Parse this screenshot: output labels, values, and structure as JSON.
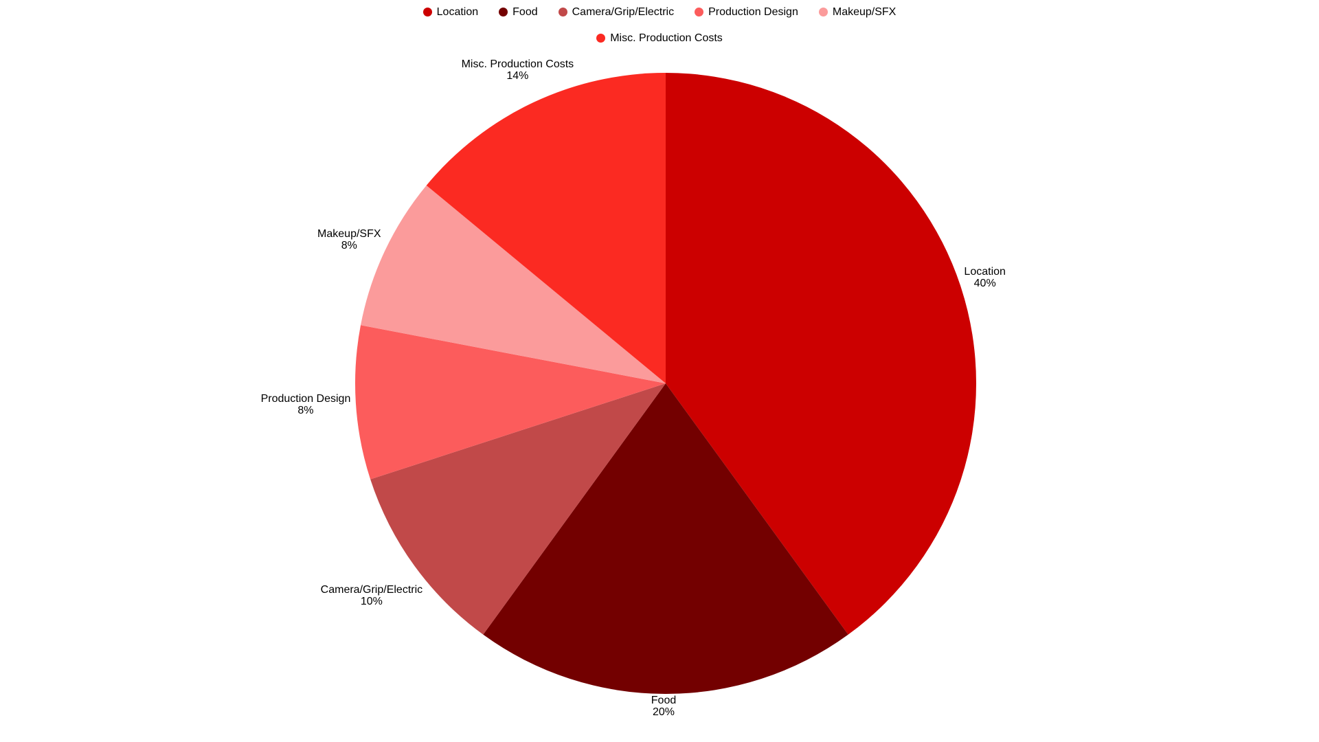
{
  "chart_data": {
    "type": "pie",
    "title": "",
    "unit": "percent",
    "start_angle_deg": 90,
    "direction": "clockwise",
    "labels_position": "outside",
    "legend_position": "top",
    "categories": [
      "Location",
      "Food",
      "Camera/Grip/Electric",
      "Production Design",
      "Makeup/SFX",
      "Misc. Production Costs"
    ],
    "values": [
      40,
      20,
      10,
      8,
      8,
      14
    ],
    "slices": [
      {
        "label": "Location",
        "value_pct": 40,
        "pct_label": "40%",
        "color": "#cc0000"
      },
      {
        "label": "Food",
        "value_pct": 20,
        "pct_label": "20%",
        "color": "#730000"
      },
      {
        "label": "Camera/Grip/Electric",
        "value_pct": 10,
        "pct_label": "10%",
        "color": "#c14949"
      },
      {
        "label": "Production Design",
        "value_pct": 8,
        "pct_label": "8%",
        "color": "#fc5c5c"
      },
      {
        "label": "Makeup/SFX",
        "value_pct": 8,
        "pct_label": "8%",
        "color": "#fb9b9b"
      },
      {
        "label": "Misc. Production Costs",
        "value_pct": 14,
        "pct_label": "14%",
        "color": "#fb2a22"
      }
    ],
    "legend": {
      "rows": [
        [
          "Location",
          "Food",
          "Camera/Grip/Electric",
          "Production Design",
          "Makeup/SFX"
        ],
        [
          "Misc. Production Costs"
        ]
      ]
    }
  }
}
